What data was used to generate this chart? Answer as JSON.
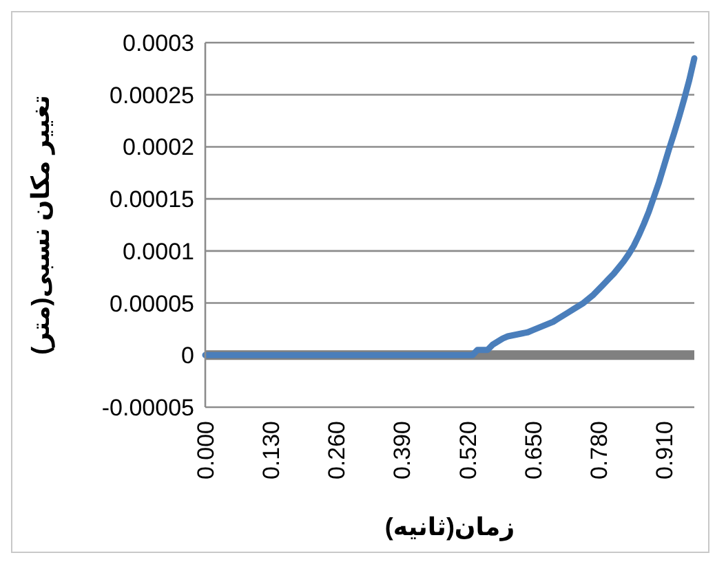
{
  "chart_data": {
    "type": "line",
    "xlabel": "زمان(ثانیه)",
    "ylabel": "تغییر مکان نسبی(متر)",
    "categories": [
      "0.000",
      null,
      null,
      null,
      null,
      null,
      null,
      null,
      null,
      null,
      null,
      null,
      null,
      "0.130",
      null,
      null,
      null,
      null,
      null,
      null,
      null,
      null,
      null,
      null,
      null,
      null,
      "0.260",
      null,
      null,
      null,
      null,
      null,
      null,
      null,
      null,
      null,
      null,
      null,
      null,
      "0.390",
      null,
      null,
      null,
      null,
      null,
      null,
      null,
      null,
      null,
      null,
      null,
      null,
      "0.520",
      null,
      null,
      null,
      null,
      null,
      null,
      null,
      null,
      null,
      null,
      null,
      null,
      "0.650",
      null,
      null,
      null,
      null,
      null,
      null,
      null,
      null,
      null,
      null,
      null,
      null,
      "0.780",
      null,
      null,
      null,
      null,
      null,
      null,
      null,
      null,
      null,
      null,
      null,
      null,
      "0.910",
      null,
      null,
      null,
      null,
      null,
      null
    ],
    "series": [
      {
        "color": "#4a7ebb",
        "values": [
          0,
          0,
          0,
          0,
          0,
          0,
          0,
          0,
          0,
          0,
          0,
          0,
          0,
          0,
          0,
          0,
          0,
          0,
          0,
          0,
          0,
          0,
          0,
          0,
          0,
          0,
          0,
          0,
          0,
          0,
          0,
          0,
          0,
          0,
          0,
          0,
          0,
          0,
          0,
          0,
          0,
          0,
          0,
          0,
          0,
          0,
          0,
          0,
          0,
          0,
          0,
          0,
          0,
          0,
          5e-06,
          5e-06,
          5e-06,
          1e-05,
          1.3e-05,
          1.6e-05,
          1.8e-05,
          1.9e-05,
          2e-05,
          2.1e-05,
          2.2e-05,
          2.4e-05,
          2.6e-05,
          2.8e-05,
          3e-05,
          3.2e-05,
          3.5e-05,
          3.8e-05,
          4.1e-05,
          4.4e-05,
          4.7e-05,
          5e-05,
          5.4e-05,
          5.8e-05,
          6.3e-05,
          6.8e-05,
          7.3e-05,
          7.8e-05,
          8.4e-05,
          9e-05,
          9.7e-05,
          0.000105,
          0.000115,
          0.000126,
          0.000138,
          0.000152,
          0.000166,
          0.000182,
          0.000198,
          0.000213,
          0.000229,
          0.000246,
          0.000264,
          0.000285
        ]
      }
    ],
    "ylim": [
      -5e-05,
      0.0003
    ],
    "yticks": [
      {
        "value": -5e-05,
        "label": "-0.00005"
      },
      0,
      {
        "value": 5e-05,
        "label": "0.00005"
      },
      0.0001,
      0.00015,
      0.0002,
      0.00025,
      0.0003
    ],
    "ref_lines": [
      {
        "axis": "y",
        "value": 0,
        "color": "#808080"
      }
    ],
    "grid": "y",
    "legend": false,
    "marker": "none",
    "line_style": "solid"
  }
}
